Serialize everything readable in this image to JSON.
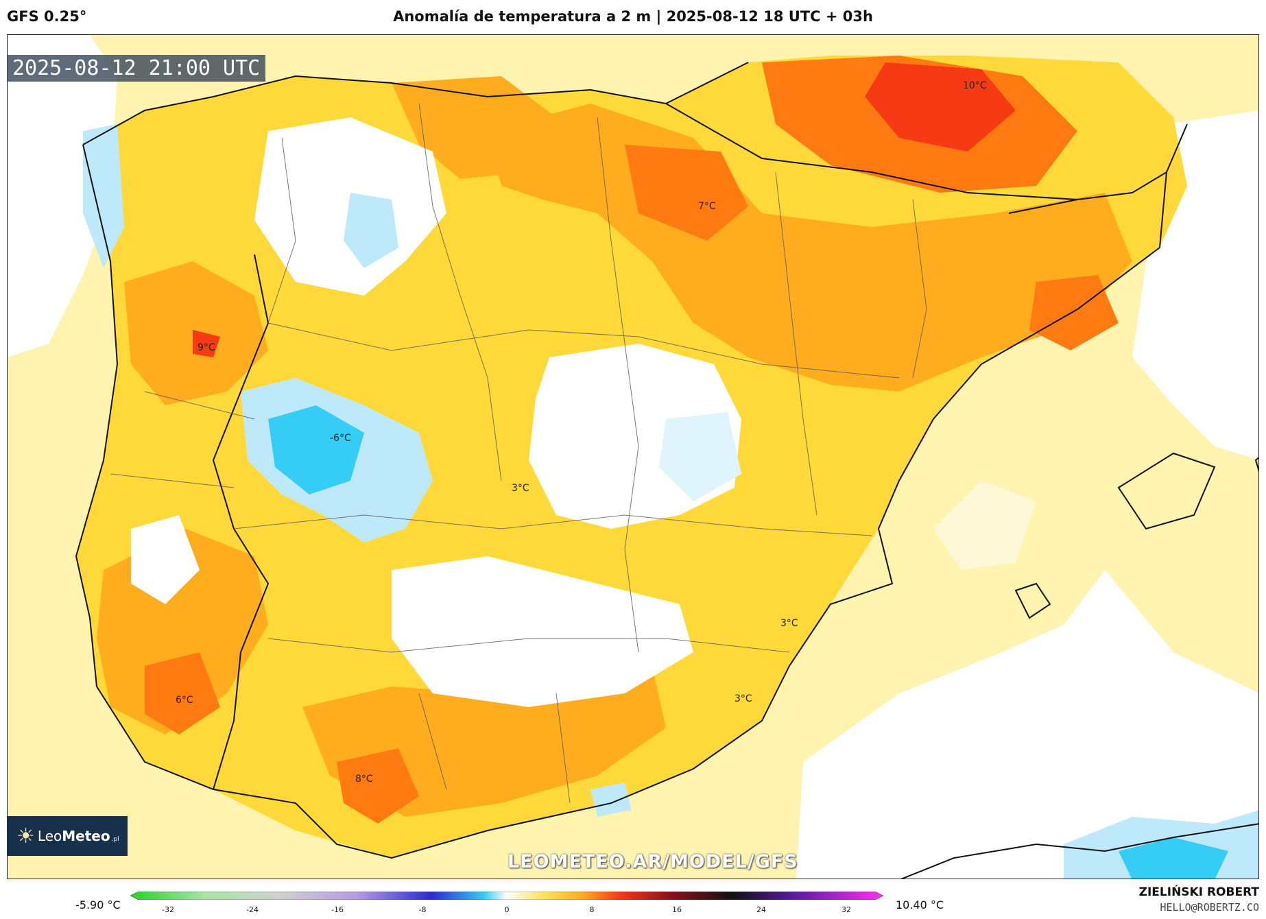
{
  "header": {
    "model": "GFS 0.25°",
    "title": "Anomalía de temperatura a 2 m | 2025-08-12 18 UTC + 03h"
  },
  "map": {
    "valid_time": "2025-08-12 21:00 UTC",
    "labels": [
      {
        "id": "a",
        "text": "10°C"
      },
      {
        "id": "b",
        "text": "7°C"
      },
      {
        "id": "c",
        "text": "9°C"
      },
      {
        "id": "d",
        "text": "-6°C"
      },
      {
        "id": "e",
        "text": "3°C"
      },
      {
        "id": "f",
        "text": "3°C"
      },
      {
        "id": "g",
        "text": "6°C"
      },
      {
        "id": "h",
        "text": "3°C"
      },
      {
        "id": "i",
        "text": "8°C"
      }
    ],
    "watermark": "LEOMETEO.AR/MODEL/GFS",
    "colors": {
      "sea_white": "#ffffff",
      "light_yellow": "#fff3b0",
      "yellow": "#ffd93a",
      "orange": "#ffad1f",
      "dark_orange": "#ff7a10",
      "red": "#f63a14",
      "light_blue": "#bde9fb",
      "blue": "#35cdf6"
    }
  },
  "logo": {
    "name_part1": "Leo",
    "name_part2": "Meteo",
    "suffix": ".pl"
  },
  "legend": {
    "min_label": "-5.90 °C",
    "max_label": "10.40 °C",
    "ticks": [
      "-32",
      "-24",
      "-16",
      "-8",
      "0",
      "8",
      "16",
      "24",
      "32"
    ]
  },
  "credit": {
    "author": "ZIELIŃSKI ROBERT",
    "email": "HELLO@ROBERTZ.CO"
  }
}
